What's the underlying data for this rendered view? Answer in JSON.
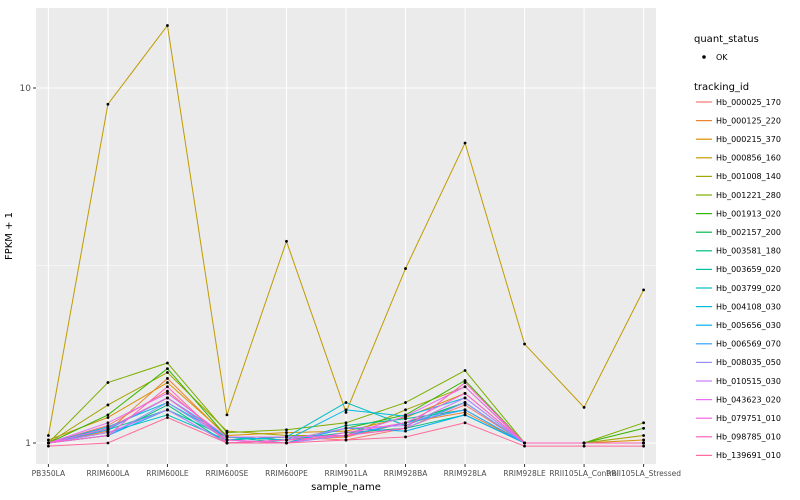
{
  "chart_data": {
    "type": "line",
    "title": "",
    "xlabel": "sample_name",
    "ylabel": "FPKM + 1",
    "y_scale": "log10",
    "ylim": [
      0.95,
      16
    ],
    "y_ticks": [
      1,
      10
    ],
    "grid": true,
    "panel_background": "#EBEBEB",
    "gridline_color": "#FFFFFF",
    "point_color": "#000000",
    "legend_position": "right",
    "legend": {
      "quant_status_title": "quant_status",
      "quant_status_items": [
        "OK"
      ],
      "tracking_id_title": "tracking_id"
    },
    "x_categories": [
      "PB350LA",
      "RRIM600LA",
      "RRIM600LE",
      "RRIM600SE",
      "RRIM600PE",
      "RRIM901LA",
      "RRIM928BA",
      "RRIM928LA",
      "RRIM928LE",
      "RRII105LA_Control",
      "RRII105LA_Stressed"
    ],
    "series": [
      {
        "name": "Hb_000025_170",
        "color": "#F8766D",
        "values": [
          1.0,
          1.12,
          1.4,
          1.02,
          1.04,
          1.02,
          1.1,
          1.28,
          1.0,
          1.0,
          1.0
        ]
      },
      {
        "name": "Hb_000125_220",
        "color": "#EA8331",
        "values": [
          1.0,
          1.08,
          1.52,
          1.04,
          1.02,
          1.04,
          1.14,
          1.22,
          1.0,
          1.0,
          1.0
        ]
      },
      {
        "name": "Hb_000215_370",
        "color": "#D89000",
        "values": [
          1.02,
          1.18,
          1.48,
          1.05,
          1.07,
          1.08,
          1.18,
          1.38,
          1.0,
          1.0,
          1.02
        ]
      },
      {
        "name": "Hb_000856_160",
        "color": "#C09B00",
        "values": [
          1.05,
          9.0,
          15.0,
          1.2,
          3.7,
          1.22,
          3.1,
          7.0,
          1.9,
          1.26,
          2.7
        ]
      },
      {
        "name": "Hb_001008_140",
        "color": "#A3A500",
        "values": [
          1.0,
          1.28,
          1.58,
          1.08,
          1.05,
          1.05,
          1.24,
          1.44,
          1.0,
          1.0,
          1.05
        ]
      },
      {
        "name": "Hb_001221_280",
        "color": "#7CAE00",
        "values": [
          1.0,
          1.48,
          1.68,
          1.07,
          1.09,
          1.14,
          1.3,
          1.6,
          1.0,
          1.0,
          1.14
        ]
      },
      {
        "name": "Hb_001913_020",
        "color": "#39B600",
        "values": [
          1.0,
          1.2,
          1.62,
          1.04,
          1.02,
          1.1,
          1.2,
          1.5,
          1.0,
          1.0,
          1.1
        ]
      },
      {
        "name": "Hb_002157_200",
        "color": "#00BB4E",
        "values": [
          1.0,
          1.1,
          1.34,
          1.02,
          1.04,
          1.05,
          1.14,
          1.3,
          1.0,
          1.0,
          1.0
        ]
      },
      {
        "name": "Hb_003581_180",
        "color": "#00BF7D",
        "values": [
          1.0,
          1.05,
          1.28,
          1.0,
          1.02,
          1.07,
          1.1,
          1.2,
          1.0,
          1.0,
          1.0
        ]
      },
      {
        "name": "Hb_003659_020",
        "color": "#00C1A3",
        "values": [
          1.0,
          1.09,
          1.24,
          1.04,
          1.0,
          1.12,
          1.17,
          1.24,
          1.0,
          1.0,
          1.0
        ]
      },
      {
        "name": "Hb_003799_020",
        "color": "#00BFC4",
        "values": [
          1.0,
          1.07,
          1.2,
          1.02,
          1.04,
          1.3,
          1.12,
          1.3,
          1.0,
          1.0,
          1.0
        ]
      },
      {
        "name": "Hb_004108_030",
        "color": "#00BAE0",
        "values": [
          1.0,
          1.11,
          1.3,
          1.04,
          1.02,
          1.24,
          1.19,
          1.34,
          1.0,
          1.0,
          1.0
        ]
      },
      {
        "name": "Hb_005656_030",
        "color": "#00B0F6",
        "values": [
          1.0,
          1.05,
          1.24,
          1.0,
          1.0,
          1.1,
          1.08,
          1.2,
          1.0,
          1.0,
          1.0
        ]
      },
      {
        "name": "Hb_006569_070",
        "color": "#35A2FF",
        "values": [
          1.0,
          1.09,
          1.34,
          1.04,
          1.04,
          1.05,
          1.14,
          1.24,
          1.0,
          1.0,
          1.0
        ]
      },
      {
        "name": "Hb_008035_050",
        "color": "#9590FF",
        "values": [
          1.0,
          1.05,
          1.3,
          1.02,
          1.0,
          1.05,
          1.1,
          1.3,
          1.0,
          1.0,
          1.0
        ]
      },
      {
        "name": "Hb_010515_030",
        "color": "#C77CFF",
        "values": [
          1.0,
          1.07,
          1.24,
          1.0,
          1.02,
          1.1,
          1.12,
          1.34,
          1.0,
          1.0,
          1.0
        ]
      },
      {
        "name": "Hb_043623_020",
        "color": "#E76BF3",
        "values": [
          1.0,
          1.14,
          1.38,
          1.04,
          1.04,
          1.05,
          1.19,
          1.44,
          1.0,
          1.0,
          1.0
        ]
      },
      {
        "name": "Hb_079751_010",
        "color": "#FA62DB",
        "values": [
          1.0,
          1.1,
          1.34,
          1.02,
          1.0,
          1.07,
          1.14,
          1.38,
          1.0,
          1.0,
          1.0
        ]
      },
      {
        "name": "Hb_098785_010",
        "color": "#FF62BC",
        "values": [
          1.0,
          1.05,
          1.44,
          1.0,
          1.02,
          1.05,
          1.1,
          1.48,
          1.0,
          1.0,
          1.0
        ]
      },
      {
        "name": "Hb_139691_010",
        "color": "#FF6A98",
        "values": [
          0.98,
          1.0,
          1.18,
          1.0,
          1.0,
          1.02,
          1.04,
          1.14,
          0.98,
          0.98,
          0.98
        ]
      }
    ]
  }
}
